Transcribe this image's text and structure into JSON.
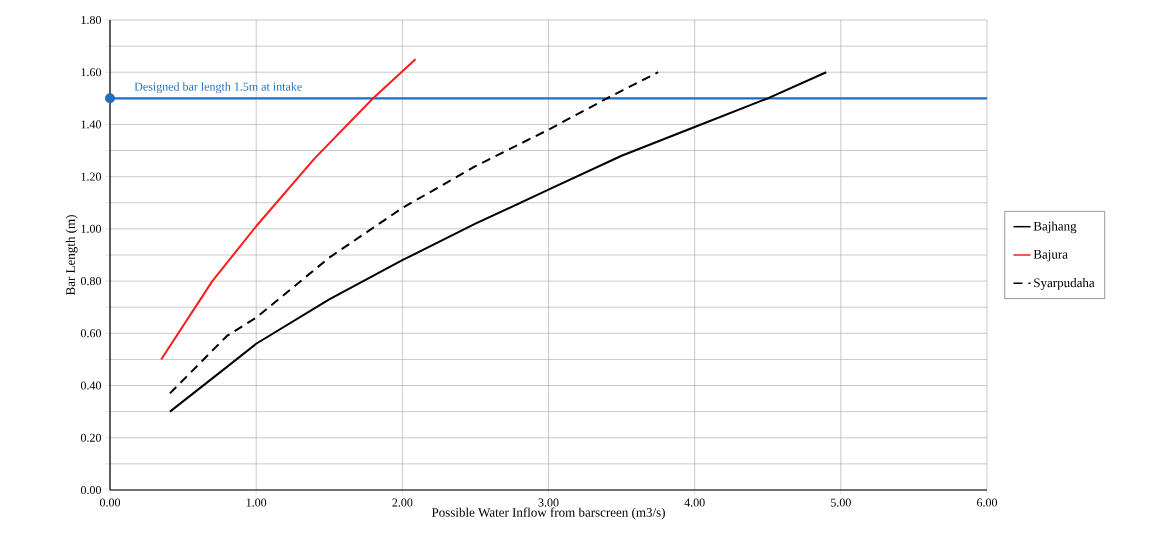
{
  "chart_data": {
    "type": "line",
    "xlabel": "Possible Water Inflow  from  barscreen (m3/s)",
    "ylabel": "Bar Length (m)",
    "xlim": [
      0,
      6
    ],
    "xticks": [
      {
        "value": 0,
        "label": "0.00"
      },
      {
        "value": 1,
        "label": "1.00"
      },
      {
        "value": 2,
        "label": "2.00"
      },
      {
        "value": 3,
        "label": "3.00"
      },
      {
        "value": 4,
        "label": "4.00"
      },
      {
        "value": 5,
        "label": "5.00"
      },
      {
        "value": 6,
        "label": "6.00"
      }
    ],
    "ylim": [
      0,
      1.8
    ],
    "yticks": [
      {
        "value": 0,
        "label": "0.00"
      },
      {
        "value": 0.1,
        "label": null
      },
      {
        "value": 0.2,
        "label": "0.20"
      },
      {
        "value": 0.3,
        "label": null
      },
      {
        "value": 0.4,
        "label": "0.40"
      },
      {
        "value": 0.5,
        "label": null
      },
      {
        "value": 0.6,
        "label": "0.60"
      },
      {
        "value": 0.7,
        "label": null
      },
      {
        "value": 0.8,
        "label": "0.80"
      },
      {
        "value": 0.9,
        "label": null
      },
      {
        "value": 1.0,
        "label": "1.00"
      },
      {
        "value": 1.1,
        "label": null
      },
      {
        "value": 1.2,
        "label": "1.20"
      },
      {
        "value": 1.3,
        "label": null
      },
      {
        "value": 1.4,
        "label": "1.40"
      },
      {
        "value": 1.5,
        "label": null
      },
      {
        "value": 1.6,
        "label": "1.60"
      },
      {
        "value": 1.7,
        "label": null
      },
      {
        "value": 1.8,
        "label": "1.80"
      }
    ],
    "grid": true,
    "legend": "right",
    "series": [
      {
        "name": "Bajhang",
        "color": "#000000",
        "line_style": "solid",
        "x": [
          0.41,
          0.82,
          1.0,
          1.5,
          2.0,
          2.5,
          3.0,
          3.5,
          4.0,
          4.5,
          4.9
        ],
        "values": [
          0.3,
          0.48,
          0.56,
          0.73,
          0.88,
          1.02,
          1.15,
          1.28,
          1.39,
          1.5,
          1.6
        ]
      },
      {
        "name": "Bajura",
        "color": "#ff1a1a",
        "line_style": "solid",
        "x": [
          0.35,
          0.7,
          1.0,
          1.4,
          1.8,
          2.09
        ],
        "values": [
          0.5,
          0.8,
          1.01,
          1.27,
          1.5,
          1.65
        ]
      },
      {
        "name": "Syarpudaha",
        "color": "#000000",
        "line_style": "dashed",
        "x": [
          0.41,
          0.8,
          1.0,
          1.5,
          2.0,
          2.5,
          3.0,
          3.4,
          3.75
        ],
        "values": [
          0.37,
          0.59,
          0.66,
          0.89,
          1.08,
          1.24,
          1.38,
          1.5,
          1.6
        ]
      },
      {
        "type": "scatter",
        "color": "#1f6fbf",
        "x": [
          0
        ],
        "values": [
          1.5
        ]
      }
    ],
    "ref_lines": [
      {
        "axis": "y",
        "value": 1.5,
        "label": "Designed bar  length 1.5m at intake",
        "color": "#1f6fbf"
      }
    ]
  }
}
